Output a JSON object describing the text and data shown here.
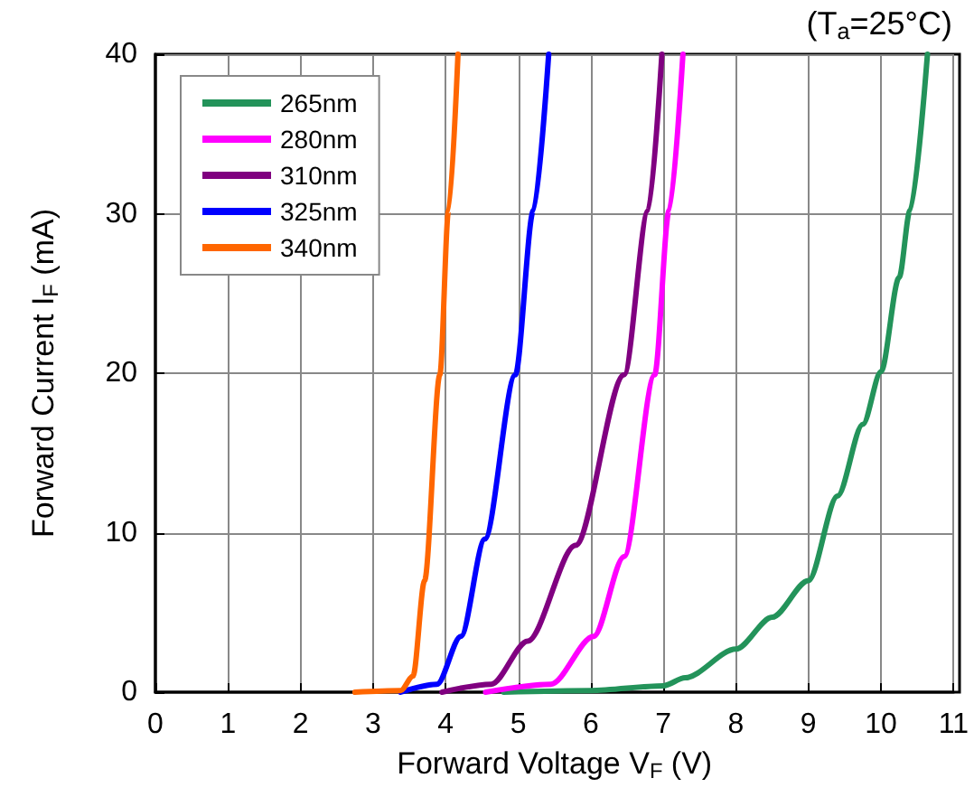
{
  "chart_data": {
    "type": "line",
    "xlabel": "Forward Voltage V$_{F}$ (V)",
    "ylabel": "Forward Current I$_{F}$ (mA)",
    "annotations": [
      "(T$_{a}$=25°C)"
    ],
    "xlim": [
      0,
      11
    ],
    "xticks": [
      0,
      1,
      2,
      3,
      4,
      5,
      6,
      7,
      8,
      9,
      10,
      11
    ],
    "ylim": [
      0,
      40
    ],
    "yticks": [
      0,
      10,
      20,
      30,
      40
    ],
    "grid": true,
    "legend": "top left",
    "marker": "none",
    "line_style": "solid",
    "series": [
      {
        "name": "265nm",
        "color": "#23935a",
        "x": [
          4.8,
          6.0,
          7.0,
          7.3,
          8.0,
          8.5,
          9.0,
          9.4,
          9.75,
          10.0,
          10.25,
          10.4,
          10.64
        ],
        "values": [
          0,
          0.1,
          0.4,
          0.9,
          2.7,
          4.7,
          7,
          12.3,
          16.8,
          20.1,
          26,
          30.2,
          40
        ]
      },
      {
        "name": "280nm",
        "color": "#ff00ff",
        "x": [
          4.55,
          5.45,
          6.04,
          6.46,
          6.88,
          7.08,
          7.27
        ],
        "values": [
          0,
          0.5,
          3.5,
          8.5,
          19.9,
          30.2,
          40
        ]
      },
      {
        "name": "310nm",
        "color": "#800080",
        "x": [
          3.95,
          4.63,
          5.13,
          5.79,
          6.46,
          6.79,
          6.98
        ],
        "values": [
          0,
          0.5,
          3.2,
          9.2,
          19.9,
          30.2,
          40
        ]
      },
      {
        "name": "325nm",
        "color": "#0000ff",
        "x": [
          3.38,
          3.88,
          4.21,
          4.54,
          4.96,
          5.21,
          5.42
        ],
        "values": [
          0,
          0.5,
          3.5,
          9.6,
          19.9,
          30.2,
          40
        ]
      },
      {
        "name": "340nm",
        "color": "#ff6600",
        "x": [
          2.75,
          3.38,
          3.55,
          3.71,
          3.92,
          4.04,
          4.17
        ],
        "values": [
          0,
          0.1,
          1,
          7,
          19.9,
          30.2,
          40
        ]
      }
    ]
  }
}
